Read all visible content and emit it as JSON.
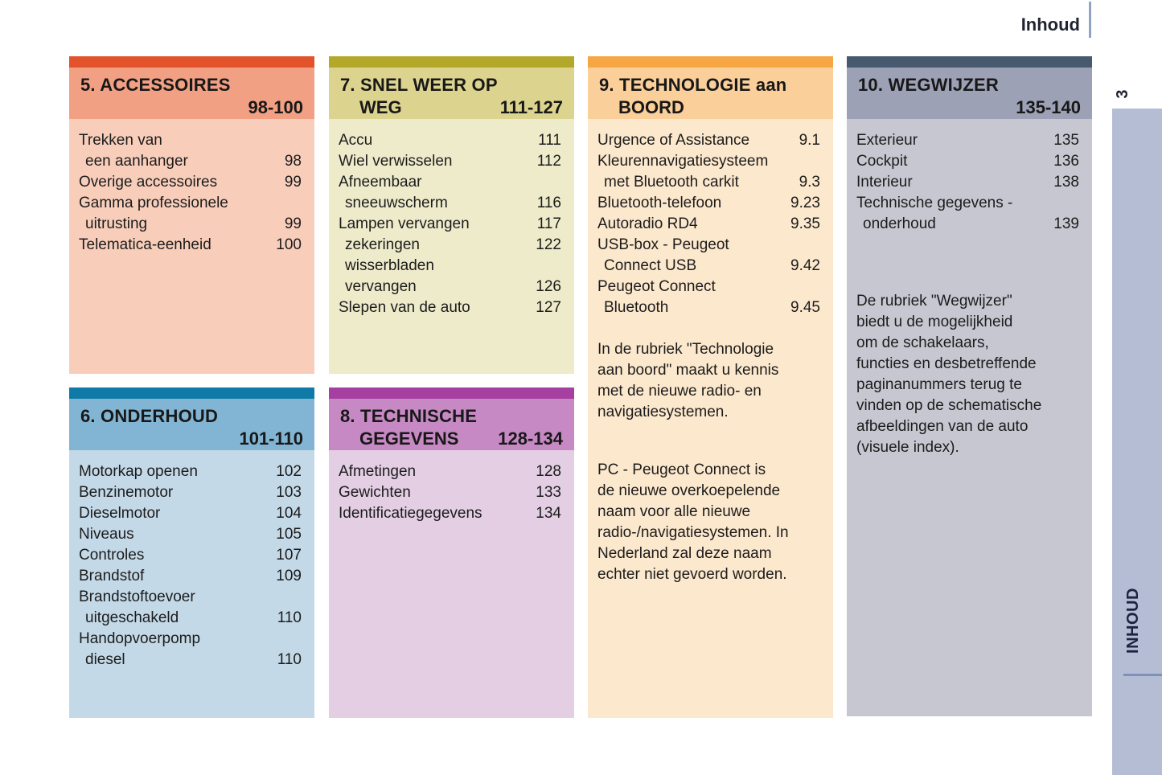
{
  "page": {
    "header_label": "Inhoud",
    "page_number": "3",
    "side_tab_label": "INHOUD",
    "colors": {
      "background": "#ffffff",
      "heading_text": "#1f2430",
      "heading_rule": "#8fa3c4",
      "side_band": "#b5bdd4",
      "side_tab_text": "#1b2440",
      "side_tab_rule": "#7c90ba",
      "body_text": "#1c1c1c"
    }
  },
  "boxes": [
    {
      "key": "accessoires",
      "title_line1": "5. ACCESSOIRES",
      "title_line2": "",
      "page_range": "98-100",
      "colors": {
        "bar": "#e2532b",
        "header": "#f1a083",
        "body": "#f8cebb"
      },
      "items": [
        {
          "label": "Trekken van",
          "page": "",
          "indent": false
        },
        {
          "label": "een aanhanger",
          "page": "98",
          "indent": true
        },
        {
          "label": "Overige accessoires",
          "page": "99",
          "indent": false
        },
        {
          "label": "Gamma professionele",
          "page": "",
          "indent": false
        },
        {
          "label": "uitrusting",
          "page": "99",
          "indent": true
        },
        {
          "label": "Telematica-eenheid",
          "page": "100",
          "indent": false
        }
      ],
      "paragraphs": []
    },
    {
      "key": "onderhoud",
      "title_line1": "6. ONDERHOUD",
      "title_line2": "",
      "page_range": "101-110",
      "colors": {
        "bar": "#0f7aa6",
        "header": "#82b5d3",
        "body": "#c4d9e8"
      },
      "items": [
        {
          "label": "Motorkap openen",
          "page": "102",
          "indent": false
        },
        {
          "label": "Benzinemotor",
          "page": "103",
          "indent": false
        },
        {
          "label": "Dieselmotor",
          "page": "104",
          "indent": false
        },
        {
          "label": "Niveaus",
          "page": "105",
          "indent": false
        },
        {
          "label": "Controles",
          "page": "107",
          "indent": false
        },
        {
          "label": "Brandstof",
          "page": "109",
          "indent": false
        },
        {
          "label": "Brandstoftoevoer",
          "page": "",
          "indent": false
        },
        {
          "label": "uitgeschakeld",
          "page": "110",
          "indent": true
        },
        {
          "label": "Handopvoerpomp",
          "page": "",
          "indent": false
        },
        {
          "label": "diesel",
          "page": "110",
          "indent": true
        }
      ],
      "paragraphs": []
    },
    {
      "key": "snelweer",
      "title_line1": "7. SNEL WEER OP",
      "title_line2": "WEG",
      "page_range": "111-127",
      "colors": {
        "bar": "#b4a82b",
        "header": "#dcd38e",
        "body": "#eeebcb"
      },
      "items": [
        {
          "label": "Accu",
          "page": "111",
          "indent": false
        },
        {
          "label": "Wiel verwisselen",
          "page": "112",
          "indent": false
        },
        {
          "label": "Afneembaar",
          "page": "",
          "indent": false
        },
        {
          "label": "sneeuwscherm",
          "page": "116",
          "indent": true
        },
        {
          "label": "Lampen vervangen",
          "page": "117",
          "indent": false
        },
        {
          "label": "zekeringen",
          "page": "122",
          "indent": true
        },
        {
          "label": "wisserbladen",
          "page": "",
          "indent": true
        },
        {
          "label": "vervangen",
          "page": "126",
          "indent": true
        },
        {
          "label": "Slepen van de auto",
          "page": "127",
          "indent": false
        }
      ],
      "paragraphs": []
    },
    {
      "key": "technische",
      "title_line1": "8. TECHNISCHE",
      "title_line2": "GEGEVENS",
      "page_range": "128-134",
      "colors": {
        "bar": "#a53fa0",
        "header": "#c689c3",
        "body": "#e3cee3"
      },
      "items": [
        {
          "label": "Afmetingen",
          "page": "128",
          "indent": false
        },
        {
          "label": "Gewichten",
          "page": "133",
          "indent": false
        },
        {
          "label": "Identificatiegegevens",
          "page": "134",
          "indent": false
        }
      ],
      "paragraphs": []
    },
    {
      "key": "technologie",
      "title_line1": "9. TECHNOLOGIE aan",
      "title_line2": "BOORD",
      "page_range": "",
      "colors": {
        "bar": "#f6a744",
        "header": "#fbcf9a",
        "body": "#fce8cd"
      },
      "items": [
        {
          "label": "Urgence of Assistance",
          "page": "9.1",
          "indent": false
        },
        {
          "label": "Kleurennavigatiesysteem",
          "page": "",
          "indent": false
        },
        {
          "label": "met Bluetooth carkit",
          "page": "9.3",
          "indent": true
        },
        {
          "label": "Bluetooth-telefoon",
          "page": "9.23",
          "indent": false
        },
        {
          "label": "Autoradio RD4",
          "page": "9.35",
          "indent": false
        },
        {
          "label": "USB-box - Peugeot",
          "page": "",
          "indent": false
        },
        {
          "label": "Connect USB",
          "page": "9.42",
          "indent": true
        },
        {
          "label": "Peugeot Connect",
          "page": "",
          "indent": false
        },
        {
          "label": "Bluetooth",
          "page": "9.45",
          "indent": true
        }
      ],
      "paragraphs": [
        "In de rubriek \"Technologie\naan boord\" maakt u kennis\nmet de nieuwe radio- en\nnavigatiesystemen.",
        "PC - Peugeot Connect is\nde nieuwe overkoepelende\nnaam voor alle nieuwe\nradio-/navigatiesystemen. In\nNederland zal deze naam\nechter niet gevoerd worden."
      ]
    },
    {
      "key": "wegwijzer",
      "title_line1": "10. WEGWIJZER",
      "title_line2": "",
      "page_range": "135-140",
      "colors": {
        "bar": "#47596f",
        "header": "#9da1b5",
        "body": "#c7c7d2"
      },
      "items": [
        {
          "label": "Exterieur",
          "page": "135",
          "indent": false
        },
        {
          "label": "Cockpit",
          "page": "136",
          "indent": false
        },
        {
          "label": "Interieur",
          "page": "138",
          "indent": false
        },
        {
          "label": "Technische gegevens -",
          "page": "",
          "indent": false
        },
        {
          "label": "onderhoud",
          "page": "139",
          "indent": true
        }
      ],
      "paragraphs": [
        "De rubriek \"Wegwijzer\"\nbiedt u de mogelijkheid\nom de schakelaars,\nfuncties en desbetreffende\npaginanummers terug te\nvinden op de schematische\nafbeeldingen van de auto\n(visuele index)."
      ]
    }
  ]
}
